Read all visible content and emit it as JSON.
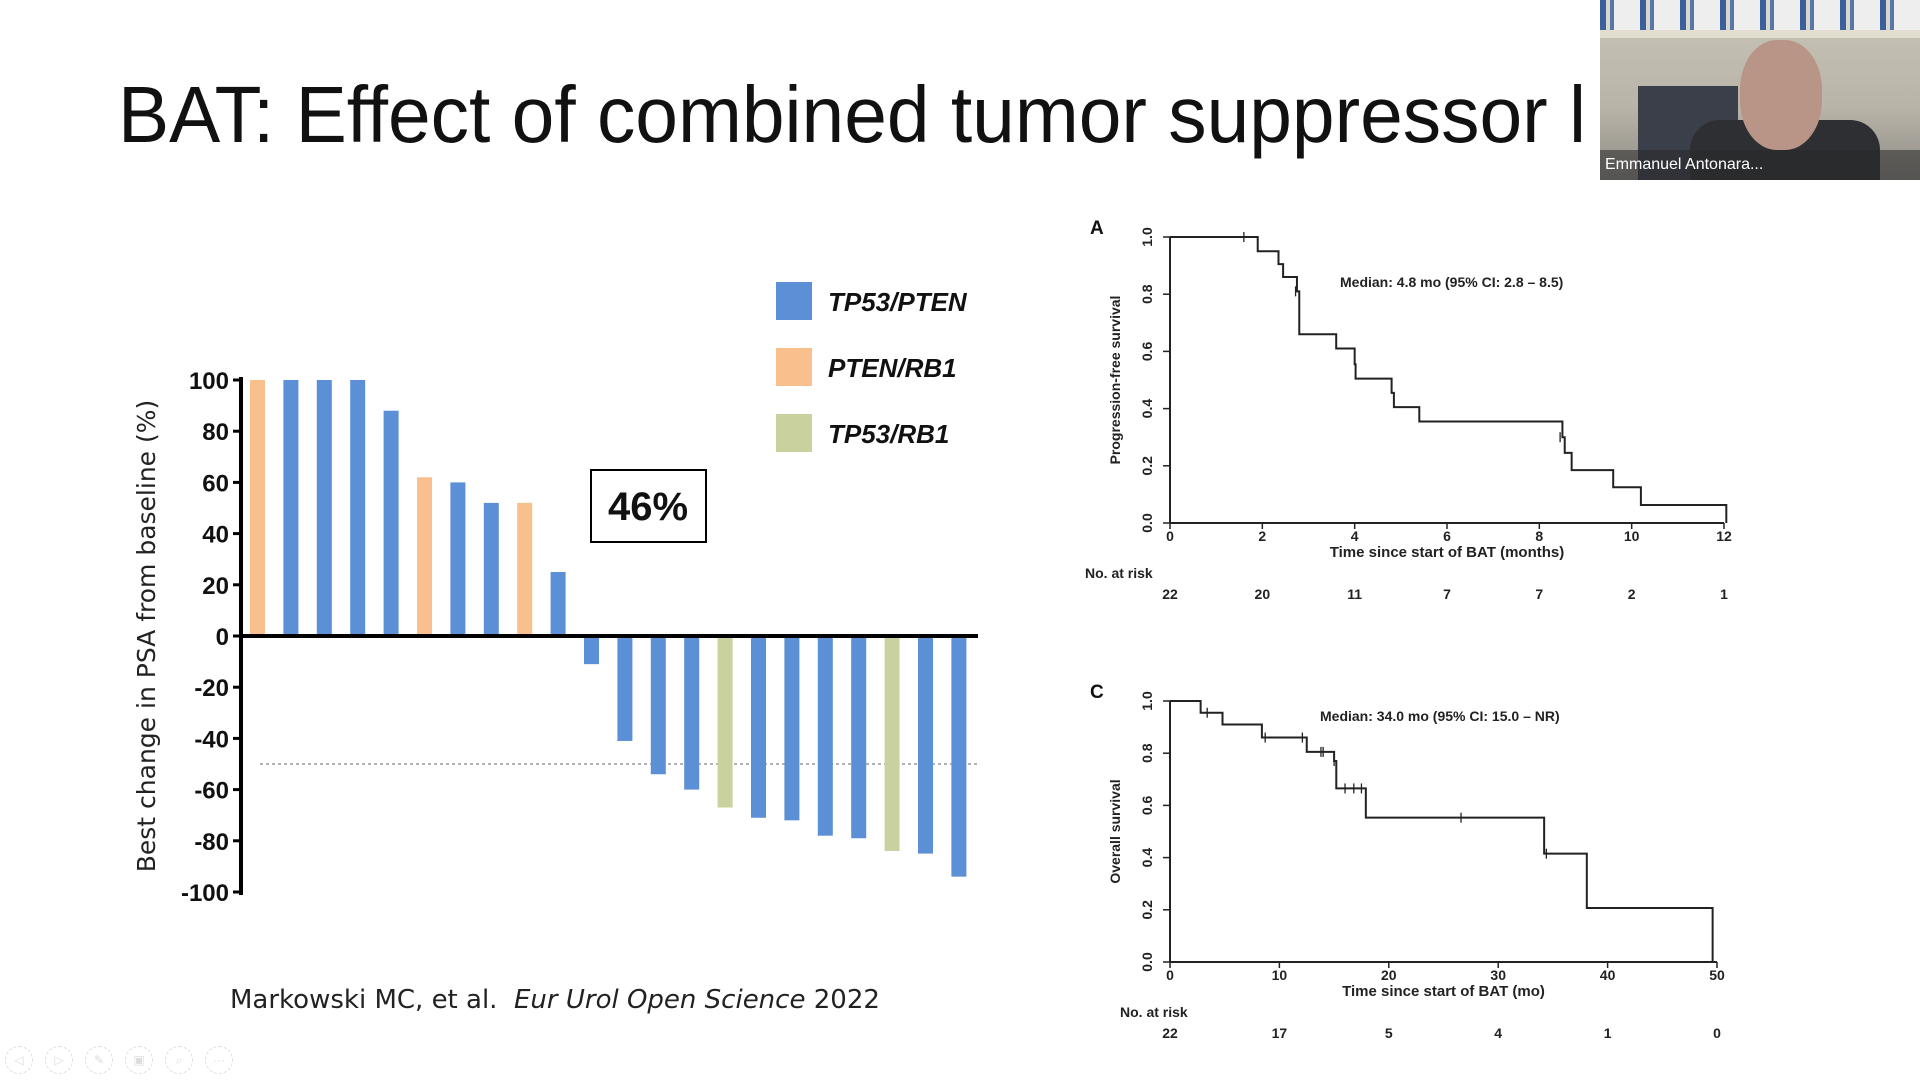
{
  "slide": {
    "title": "BAT:  Effect of combined tumor suppressor l",
    "citation_authors": "Markowski MC, et al.",
    "citation_journal": "Eur Urol Open Science",
    "citation_year": "2022"
  },
  "video": {
    "participant_name": "Emmanuel Antonara..."
  },
  "toolbar": {
    "icons": [
      "previous-icon",
      "next-icon",
      "pen-icon",
      "slides-icon",
      "zoom-icon",
      "more-icon"
    ]
  },
  "chart_data": [
    {
      "type": "bar",
      "ylabel": "Best change in PSA from baseline (%)",
      "ylim": [
        -100,
        100
      ],
      "yticks": [
        "100",
        "80",
        "60",
        "40",
        "20",
        "0",
        "-20",
        "-40",
        "-60",
        "-80",
        "-100"
      ],
      "reference_line": -50,
      "annotation": "46%",
      "legend": [
        {
          "name": "TP53/PTEN",
          "color": "#5b8fd6"
        },
        {
          "name": "PTEN/RB1",
          "color": "#f9c08e"
        },
        {
          "name": "TP53/RB1",
          "color": "#c9d29e"
        }
      ],
      "values": [
        100,
        100,
        100,
        100,
        88,
        62,
        60,
        52,
        52,
        25,
        -11,
        -41,
        -54,
        -60,
        -67,
        -71,
        -72,
        -78,
        -79,
        -84,
        -85,
        -94
      ],
      "groups": [
        1,
        0,
        0,
        0,
        0,
        1,
        0,
        0,
        1,
        0,
        0,
        0,
        0,
        0,
        2,
        0,
        0,
        0,
        0,
        2,
        0,
        0
      ]
    },
    {
      "type": "line",
      "panel": "A",
      "ylabel": "Progression-free survival",
      "xlabel": "Time since start of BAT (months)",
      "annotation": "Median: 4.8 mo (95% CI: 2.8 – 8.5)",
      "xlim": [
        0,
        12
      ],
      "ylim": [
        0,
        1
      ],
      "xticks": [
        "0",
        "2",
        "4",
        "6",
        "8",
        "10",
        "12"
      ],
      "yticks": [
        "0.0",
        "0.2",
        "0.4",
        "0.6",
        "0.8",
        "1.0"
      ],
      "steps": [
        [
          0,
          1.0
        ],
        [
          1.9,
          0.95
        ],
        [
          2.35,
          0.905
        ],
        [
          2.45,
          0.86
        ],
        [
          2.75,
          0.81
        ],
        [
          2.8,
          0.66
        ],
        [
          3.6,
          0.61
        ],
        [
          4.0,
          0.555
        ],
        [
          4.02,
          0.505
        ],
        [
          4.8,
          0.455
        ],
        [
          4.85,
          0.405
        ],
        [
          5.4,
          0.355
        ],
        [
          8.5,
          0.3
        ],
        [
          8.55,
          0.245
        ],
        [
          8.7,
          0.185
        ],
        [
          9.6,
          0.125
        ],
        [
          10.2,
          0.063
        ],
        [
          12.05,
          0.0
        ]
      ],
      "censored": [
        [
          1.6,
          1.0
        ],
        [
          2.72,
          0.81
        ],
        [
          8.45,
          0.3
        ]
      ],
      "risk_label": "No. at risk",
      "at_risk": [
        "22",
        "20",
        "11",
        "7",
        "7",
        "2",
        "1"
      ]
    },
    {
      "type": "line",
      "panel": "C",
      "ylabel": "Overall survival",
      "xlabel": "Time since start of BAT (mo)",
      "annotation": "Median: 34.0 mo (95% CI: 15.0 – NR)",
      "xlim": [
        0,
        50
      ],
      "ylim": [
        0,
        1
      ],
      "xticks": [
        "0",
        "10",
        "20",
        "30",
        "40",
        "50"
      ],
      "yticks": [
        "0.0",
        "0.2",
        "0.4",
        "0.6",
        "0.8",
        "1.0"
      ],
      "steps": [
        [
          0,
          1.0
        ],
        [
          2.8,
          0.955
        ],
        [
          4.8,
          0.91
        ],
        [
          8.4,
          0.86
        ],
        [
          12.5,
          0.805
        ],
        [
          15.0,
          0.77
        ],
        [
          15.2,
          0.665
        ],
        [
          17.9,
          0.553
        ],
        [
          34.2,
          0.415
        ],
        [
          38.1,
          0.207
        ],
        [
          49.6,
          0.0
        ]
      ],
      "censored": [
        [
          3.4,
          0.955
        ],
        [
          8.7,
          0.86
        ],
        [
          12.1,
          0.86
        ],
        [
          13.8,
          0.805
        ],
        [
          14.0,
          0.805
        ],
        [
          15.0,
          0.77
        ],
        [
          16.0,
          0.665
        ],
        [
          16.8,
          0.665
        ],
        [
          17.5,
          0.665
        ],
        [
          26.6,
          0.553
        ],
        [
          34.4,
          0.415
        ]
      ],
      "risk_label": "No. at risk",
      "at_risk": [
        "22",
        "17",
        "5",
        "4",
        "1",
        "0"
      ]
    }
  ]
}
